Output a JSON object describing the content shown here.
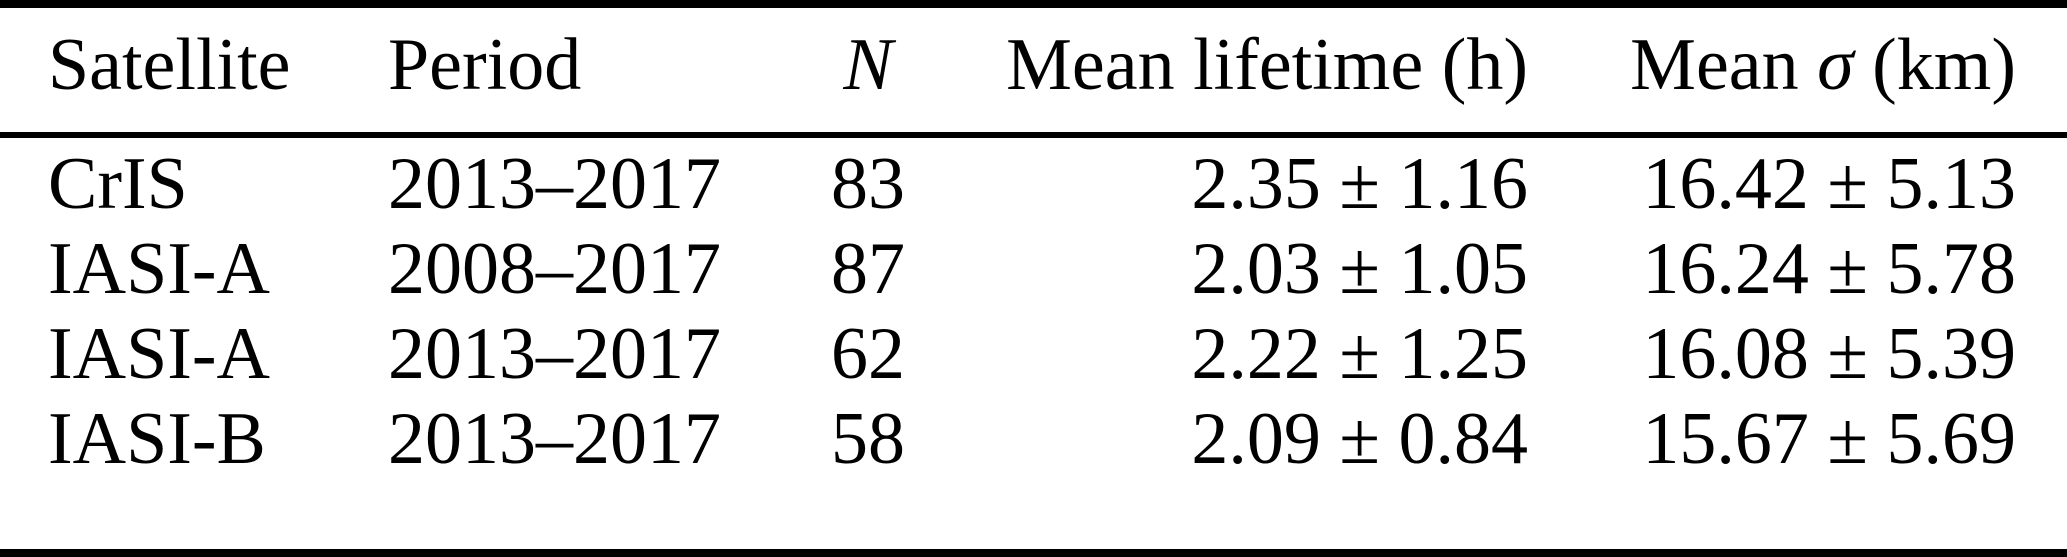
{
  "table": {
    "headers": {
      "satellite": "Satellite",
      "period": "Period",
      "n": "N",
      "mean_lifetime": "Mean lifetime (h)",
      "mean_sigma_prefix": "Mean ",
      "sigma_symbol": "σ",
      "mean_sigma_unit": " (km)"
    },
    "rows": [
      {
        "satellite": "CrIS",
        "period": "2013–2017",
        "n": "83",
        "mean_lifetime": "2.35 ± 1.16",
        "mean_sigma": "16.42 ± 5.13"
      },
      {
        "satellite": "IASI-A",
        "period": "2008–2017",
        "n": "87",
        "mean_lifetime": "2.03 ± 1.05",
        "mean_sigma": "16.24 ± 5.78"
      },
      {
        "satellite": "IASI-A",
        "period": "2013–2017",
        "n": "62",
        "mean_lifetime": "2.22 ± 1.25",
        "mean_sigma": "16.08 ± 5.39"
      },
      {
        "satellite": "IASI-B",
        "period": "2013–2017",
        "n": "58",
        "mean_lifetime": "2.09 ± 0.84",
        "mean_sigma": "15.67 ± 5.69"
      }
    ],
    "colors": {
      "text": "#000000",
      "background": "#ffffff",
      "rule": "#000000"
    }
  }
}
